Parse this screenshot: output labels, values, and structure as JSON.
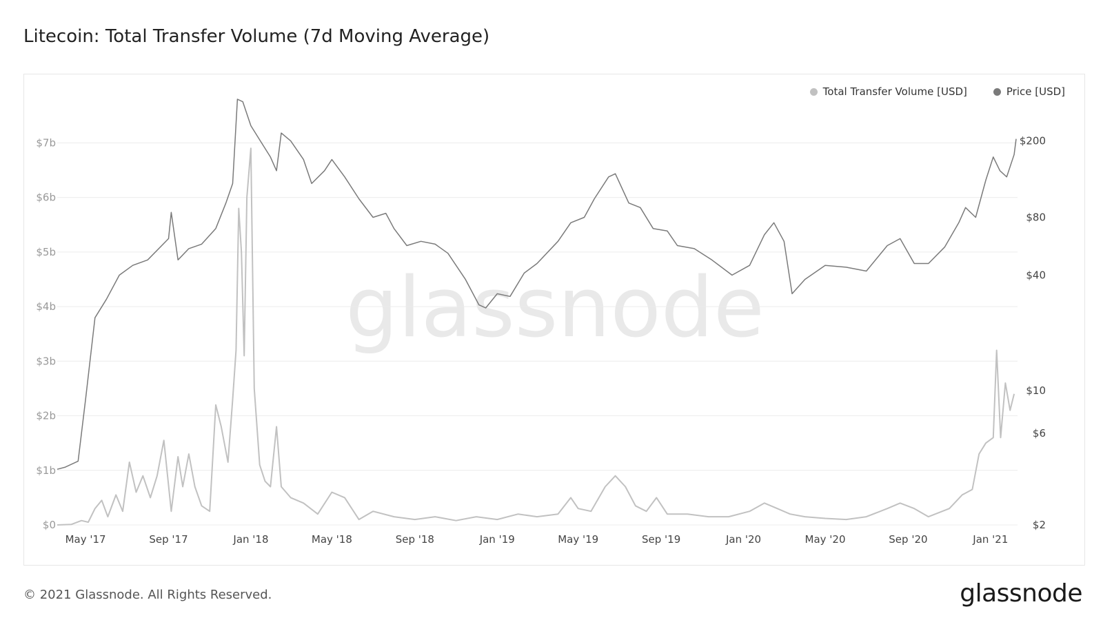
{
  "header": {
    "title": "Litecoin: Total Transfer Volume (7d Moving Average)"
  },
  "footer": {
    "copyright": "© 2021 Glassnode. All Rights Reserved.",
    "brand": "glassnode"
  },
  "watermark": "glassnode",
  "colors": {
    "volume": "#c1c1c1",
    "price": "#7a7a7a",
    "grid": "#ececec",
    "tick": "#999999",
    "watermark": "#e9e9e9"
  },
  "chart_data": {
    "type": "line",
    "title": "Litecoin: Total Transfer Volume (7d Moving Average)",
    "legend_position": "top-right",
    "grid": true,
    "x_range": [
      "2017-03-20",
      "2021-02-10"
    ],
    "x_ticks": [
      {
        "date": "2017-05-01",
        "label": "May '17"
      },
      {
        "date": "2017-09-01",
        "label": "Sep '17"
      },
      {
        "date": "2018-01-01",
        "label": "Jan '18"
      },
      {
        "date": "2018-05-01",
        "label": "May '18"
      },
      {
        "date": "2018-09-01",
        "label": "Sep '18"
      },
      {
        "date": "2019-01-01",
        "label": "Jan '19"
      },
      {
        "date": "2019-05-01",
        "label": "May '19"
      },
      {
        "date": "2019-09-01",
        "label": "Sep '19"
      },
      {
        "date": "2020-01-01",
        "label": "Jan '20"
      },
      {
        "date": "2020-05-01",
        "label": "May '20"
      },
      {
        "date": "2020-09-01",
        "label": "Sep '20"
      },
      {
        "date": "2021-01-01",
        "label": "Jan '21"
      }
    ],
    "y_left": {
      "scale": "linear",
      "range": [
        0,
        7800000000
      ],
      "ticks": [
        {
          "value": 0,
          "label": "$0"
        },
        {
          "value": 1000000000,
          "label": "$1b"
        },
        {
          "value": 2000000000,
          "label": "$2b"
        },
        {
          "value": 3000000000,
          "label": "$3b"
        },
        {
          "value": 4000000000,
          "label": "$4b"
        },
        {
          "value": 5000000000,
          "label": "$5b"
        },
        {
          "value": 6000000000,
          "label": "$6b"
        },
        {
          "value": 7000000000,
          "label": "$7b"
        }
      ]
    },
    "y_right": {
      "scale": "log",
      "range": [
        2,
        330
      ],
      "ticks": [
        {
          "value": 2,
          "label": "$2"
        },
        {
          "value": 6,
          "label": "$6"
        },
        {
          "value": 10,
          "label": "$10"
        },
        {
          "value": 40,
          "label": "$40"
        },
        {
          "value": 80,
          "label": "$80"
        },
        {
          "value": 200,
          "label": "$200"
        }
      ]
    },
    "series": [
      {
        "name": "Total Transfer Volume [USD]",
        "axis": "left",
        "points": [
          [
            "2017-03-20",
            0
          ],
          [
            "2017-04-10",
            10000000
          ],
          [
            "2017-04-25",
            80000000
          ],
          [
            "2017-05-05",
            50000000
          ],
          [
            "2017-05-15",
            300000000
          ],
          [
            "2017-05-25",
            450000000
          ],
          [
            "2017-06-03",
            150000000
          ],
          [
            "2017-06-15",
            550000000
          ],
          [
            "2017-06-25",
            250000000
          ],
          [
            "2017-07-05",
            1150000000
          ],
          [
            "2017-07-15",
            600000000
          ],
          [
            "2017-07-25",
            900000000
          ],
          [
            "2017-08-05",
            500000000
          ],
          [
            "2017-08-15",
            900000000
          ],
          [
            "2017-08-25",
            1550000000
          ],
          [
            "2017-09-05",
            250000000
          ],
          [
            "2017-09-15",
            1250000000
          ],
          [
            "2017-09-22",
            700000000
          ],
          [
            "2017-10-01",
            1300000000
          ],
          [
            "2017-10-10",
            700000000
          ],
          [
            "2017-10-20",
            350000000
          ],
          [
            "2017-11-01",
            250000000
          ],
          [
            "2017-11-10",
            2200000000
          ],
          [
            "2017-11-18",
            1800000000
          ],
          [
            "2017-11-28",
            1150000000
          ],
          [
            "2017-12-05",
            2300000000
          ],
          [
            "2017-12-10",
            3200000000
          ],
          [
            "2017-12-14",
            5800000000
          ],
          [
            "2017-12-18",
            5000000000
          ],
          [
            "2017-12-22",
            3100000000
          ],
          [
            "2017-12-26",
            6000000000
          ],
          [
            "2018-01-01",
            6900000000
          ],
          [
            "2018-01-06",
            2500000000
          ],
          [
            "2018-01-14",
            1100000000
          ],
          [
            "2018-01-22",
            800000000
          ],
          [
            "2018-01-30",
            700000000
          ],
          [
            "2018-02-08",
            1800000000
          ],
          [
            "2018-02-15",
            700000000
          ],
          [
            "2018-03-01",
            500000000
          ],
          [
            "2018-03-20",
            400000000
          ],
          [
            "2018-04-10",
            200000000
          ],
          [
            "2018-05-01",
            600000000
          ],
          [
            "2018-05-20",
            500000000
          ],
          [
            "2018-06-10",
            100000000
          ],
          [
            "2018-07-01",
            250000000
          ],
          [
            "2018-08-01",
            150000000
          ],
          [
            "2018-09-01",
            100000000
          ],
          [
            "2018-10-01",
            150000000
          ],
          [
            "2018-11-01",
            80000000
          ],
          [
            "2018-12-01",
            150000000
          ],
          [
            "2019-01-01",
            100000000
          ],
          [
            "2019-02-01",
            200000000
          ],
          [
            "2019-03-01",
            150000000
          ],
          [
            "2019-04-01",
            200000000
          ],
          [
            "2019-04-20",
            500000000
          ],
          [
            "2019-05-01",
            300000000
          ],
          [
            "2019-05-20",
            250000000
          ],
          [
            "2019-06-10",
            700000000
          ],
          [
            "2019-06-25",
            900000000
          ],
          [
            "2019-07-10",
            700000000
          ],
          [
            "2019-07-25",
            350000000
          ],
          [
            "2019-08-10",
            250000000
          ],
          [
            "2019-08-25",
            500000000
          ],
          [
            "2019-09-10",
            200000000
          ],
          [
            "2019-10-10",
            200000000
          ],
          [
            "2019-11-10",
            150000000
          ],
          [
            "2019-12-10",
            150000000
          ],
          [
            "2020-01-10",
            250000000
          ],
          [
            "2020-02-01",
            400000000
          ],
          [
            "2020-02-20",
            300000000
          ],
          [
            "2020-03-10",
            200000000
          ],
          [
            "2020-04-01",
            150000000
          ],
          [
            "2020-05-01",
            120000000
          ],
          [
            "2020-06-01",
            100000000
          ],
          [
            "2020-07-01",
            150000000
          ],
          [
            "2020-08-01",
            300000000
          ],
          [
            "2020-08-20",
            400000000
          ],
          [
            "2020-09-10",
            300000000
          ],
          [
            "2020-10-01",
            150000000
          ],
          [
            "2020-11-01",
            300000000
          ],
          [
            "2020-11-20",
            550000000
          ],
          [
            "2020-12-05",
            650000000
          ],
          [
            "2020-12-15",
            1300000000
          ],
          [
            "2020-12-25",
            1500000000
          ],
          [
            "2021-01-05",
            1600000000
          ],
          [
            "2021-01-10",
            3200000000
          ],
          [
            "2021-01-16",
            1600000000
          ],
          [
            "2021-01-23",
            2600000000
          ],
          [
            "2021-01-30",
            2100000000
          ],
          [
            "2021-02-05",
            2400000000
          ]
        ]
      },
      {
        "name": "Price [USD]",
        "axis": "right",
        "points": [
          [
            "2017-03-20",
            3.9
          ],
          [
            "2017-04-01",
            4.0
          ],
          [
            "2017-04-20",
            4.3
          ],
          [
            "2017-05-01",
            9.0
          ],
          [
            "2017-05-15",
            24.0
          ],
          [
            "2017-06-01",
            30.0
          ],
          [
            "2017-06-20",
            40.0
          ],
          [
            "2017-07-10",
            45.0
          ],
          [
            "2017-08-01",
            48.0
          ],
          [
            "2017-09-01",
            62.0
          ],
          [
            "2017-09-05",
            85.0
          ],
          [
            "2017-09-15",
            48.0
          ],
          [
            "2017-10-01",
            55.0
          ],
          [
            "2017-10-20",
            58.0
          ],
          [
            "2017-11-10",
            70.0
          ],
          [
            "2017-11-25",
            95.0
          ],
          [
            "2017-12-05",
            120.0
          ],
          [
            "2017-12-12",
            330.0
          ],
          [
            "2017-12-20",
            320.0
          ],
          [
            "2018-01-01",
            240.0
          ],
          [
            "2018-01-15",
            200.0
          ],
          [
            "2018-01-30",
            165.0
          ],
          [
            "2018-02-08",
            140.0
          ],
          [
            "2018-02-15",
            220.0
          ],
          [
            "2018-03-01",
            200.0
          ],
          [
            "2018-03-20",
            160.0
          ],
          [
            "2018-04-01",
            120.0
          ],
          [
            "2018-04-20",
            140.0
          ],
          [
            "2018-05-01",
            160.0
          ],
          [
            "2018-05-20",
            130.0
          ],
          [
            "2018-06-10",
            100.0
          ],
          [
            "2018-07-01",
            80.0
          ],
          [
            "2018-07-20",
            84.0
          ],
          [
            "2018-08-01",
            70.0
          ],
          [
            "2018-08-20",
            57.0
          ],
          [
            "2018-09-10",
            60.0
          ],
          [
            "2018-10-01",
            58.0
          ],
          [
            "2018-10-20",
            52.0
          ],
          [
            "2018-11-15",
            38.0
          ],
          [
            "2018-12-05",
            28.0
          ],
          [
            "2018-12-15",
            27.0
          ],
          [
            "2019-01-01",
            32.0
          ],
          [
            "2019-01-20",
            31.0
          ],
          [
            "2019-02-10",
            41.0
          ],
          [
            "2019-03-01",
            46.0
          ],
          [
            "2019-04-01",
            60.0
          ],
          [
            "2019-04-20",
            75.0
          ],
          [
            "2019-05-10",
            80.0
          ],
          [
            "2019-05-25",
            100.0
          ],
          [
            "2019-06-15",
            130.0
          ],
          [
            "2019-06-25",
            135.0
          ],
          [
            "2019-07-15",
            95.0
          ],
          [
            "2019-08-01",
            90.0
          ],
          [
            "2019-08-20",
            70.0
          ],
          [
            "2019-09-10",
            68.0
          ],
          [
            "2019-09-25",
            57.0
          ],
          [
            "2019-10-20",
            55.0
          ],
          [
            "2019-11-15",
            48.0
          ],
          [
            "2019-12-15",
            40.0
          ],
          [
            "2020-01-10",
            45.0
          ],
          [
            "2020-02-01",
            65.0
          ],
          [
            "2020-02-15",
            75.0
          ],
          [
            "2020-03-01",
            60.0
          ],
          [
            "2020-03-13",
            32.0
          ],
          [
            "2020-04-01",
            38.0
          ],
          [
            "2020-05-01",
            45.0
          ],
          [
            "2020-06-01",
            44.0
          ],
          [
            "2020-07-01",
            42.0
          ],
          [
            "2020-08-01",
            57.0
          ],
          [
            "2020-08-20",
            62.0
          ],
          [
            "2020-09-10",
            46.0
          ],
          [
            "2020-10-01",
            46.0
          ],
          [
            "2020-10-25",
            56.0
          ],
          [
            "2020-11-15",
            75.0
          ],
          [
            "2020-11-25",
            90.0
          ],
          [
            "2020-12-10",
            80.0
          ],
          [
            "2020-12-25",
            125.0
          ],
          [
            "2021-01-05",
            165.0
          ],
          [
            "2021-01-15",
            140.0
          ],
          [
            "2021-01-25",
            130.0
          ],
          [
            "2021-02-05",
            170.0
          ],
          [
            "2021-02-08",
            205.0
          ]
        ]
      }
    ]
  }
}
